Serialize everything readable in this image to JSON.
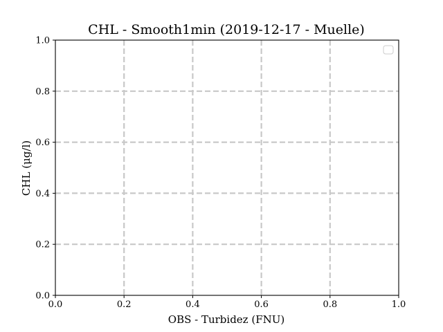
{
  "chart_data": {
    "type": "scatter",
    "title": "CHL - Smooth1min (2019-12-17 - Muelle)",
    "xlabel": "OBS - Turbidez (FNU)",
    "ylabel": "CHL (μg/l)",
    "xlim": [
      0.0,
      1.0
    ],
    "ylim": [
      0.0,
      1.0
    ],
    "xticks": [
      "0.0",
      "0.2",
      "0.4",
      "0.6",
      "0.8",
      "1.0"
    ],
    "yticks": [
      "0.0",
      "0.2",
      "0.4",
      "0.6",
      "0.8",
      "1.0"
    ],
    "grid": true,
    "legend": "top-right",
    "series": []
  }
}
